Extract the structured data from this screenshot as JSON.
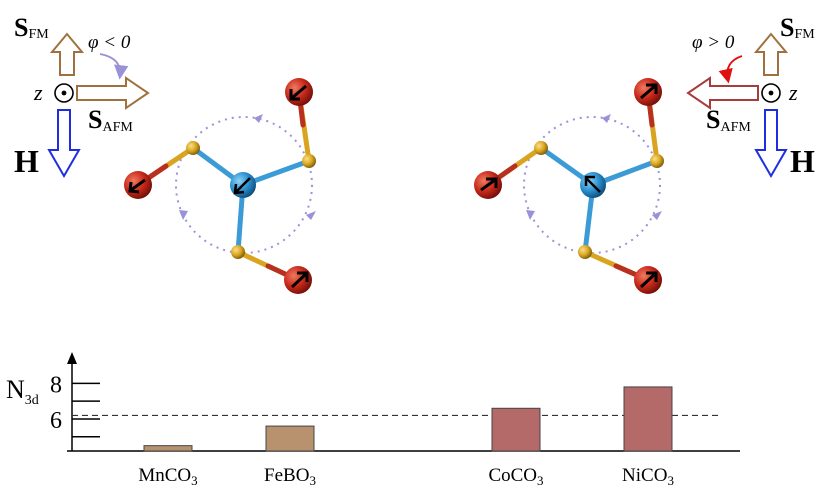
{
  "left_panel": {
    "s_fm_label": "S",
    "s_fm_sub": "FM",
    "phi_label": "φ < 0",
    "z_label": "z",
    "s_afm_label": "S",
    "s_afm_sub": "AFM",
    "h_label": "H"
  },
  "right_panel": {
    "s_fm_label": "S",
    "s_fm_sub": "FM",
    "phi_label": "φ > 0",
    "z_label": "z",
    "s_afm_label": "S",
    "s_afm_sub": "AFM",
    "h_label": "H"
  },
  "colors": {
    "fm_arrow": "#a0713f",
    "afm_arrow_left": "#a0713f",
    "afm_arrow_right": "#a63c3c",
    "h_arrow": "#1f2fe0",
    "phi_arc_left": "#9a92d8",
    "phi_arc_right": "#e01010",
    "bar_brown": "#b8926e",
    "bar_red": "#b56a6a",
    "atom_red": "#c8281a",
    "atom_blue": "#2a8fcf",
    "atom_gold": "#d9a520",
    "dotted_circle": "#9a92d8"
  },
  "chart_data": {
    "type": "bar",
    "ylabel": "N",
    "ylabel_sub": "3d",
    "yticks": [
      6,
      8
    ],
    "ylim": [
      4.2,
      9.2
    ],
    "reference_line": 6.2,
    "categories": [
      {
        "formula": "MnCO",
        "sub": "3"
      },
      {
        "formula": "FeBO",
        "sub": "3"
      },
      {
        "formula": "CoCO",
        "sub": "3"
      },
      {
        "formula": "NiCO",
        "sub": "3"
      }
    ],
    "values": [
      4.5,
      5.6,
      6.6,
      7.8
    ],
    "bar_colors": [
      "#b8926e",
      "#b8926e",
      "#b56a6a",
      "#b56a6a"
    ]
  }
}
